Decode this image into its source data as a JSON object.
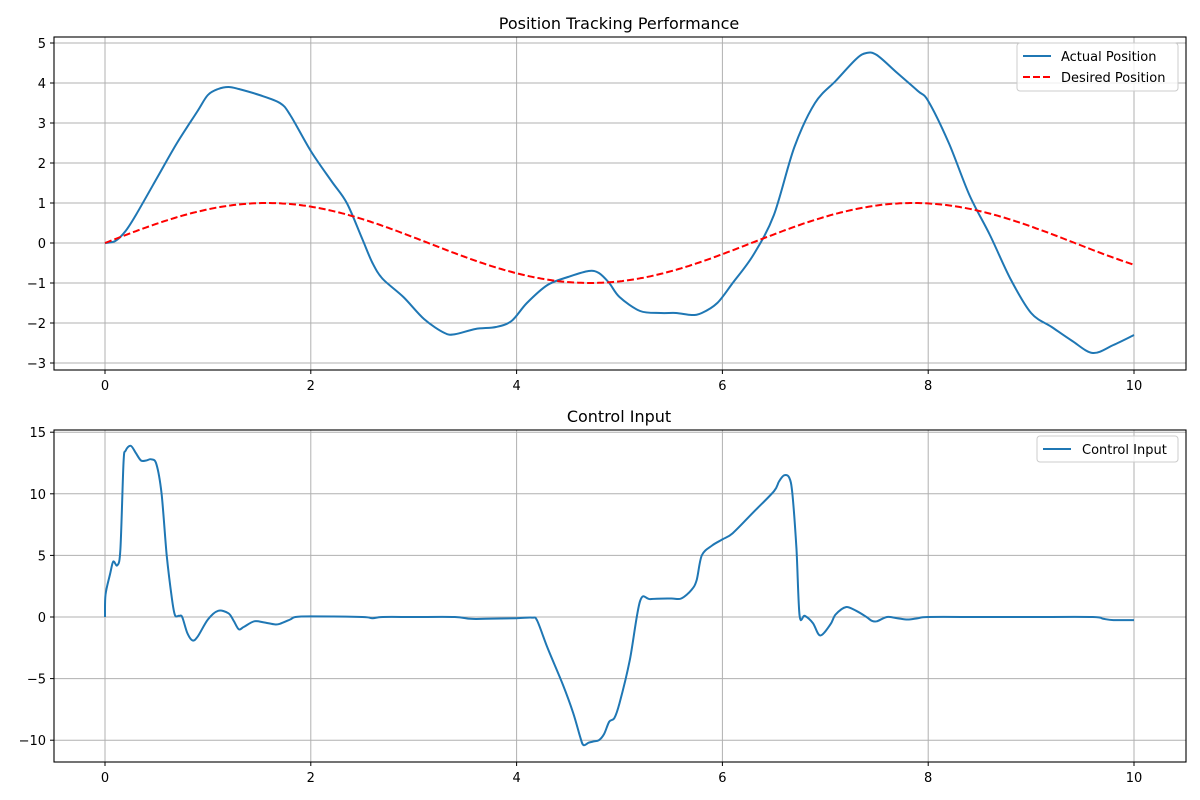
{
  "chart_data": [
    {
      "type": "line",
      "title": "Position Tracking Performance",
      "xlabel": "",
      "ylabel": "",
      "xlim": [
        -0.5,
        10.5
      ],
      "ylim": [
        -3.15,
        5.15
      ],
      "xticks": [
        0,
        2,
        4,
        6,
        8,
        10
      ],
      "yticks": [
        -3,
        -2,
        -1,
        0,
        1,
        2,
        3,
        4,
        5
      ],
      "grid": true,
      "legend_position": "upper right",
      "series": [
        {
          "name": "Actual Position",
          "color": "#1f77b4",
          "linestyle": "solid",
          "x": [
            0,
            0.1,
            0.2,
            0.3,
            0.5,
            0.7,
            0.9,
            1.0,
            1.1,
            1.2,
            1.3,
            1.5,
            1.7,
            1.8,
            2.0,
            2.2,
            2.35,
            2.5,
            2.6,
            2.7,
            2.9,
            3.1,
            3.3,
            3.4,
            3.6,
            3.8,
            3.95,
            4.1,
            4.3,
            4.5,
            4.7,
            4.8,
            4.9,
            5.0,
            5.2,
            5.4,
            5.55,
            5.7,
            5.8,
            5.95,
            6.1,
            6.3,
            6.5,
            6.7,
            6.9,
            7.1,
            7.3,
            7.4,
            7.5,
            7.7,
            7.9,
            8.0,
            8.2,
            8.4,
            8.6,
            8.8,
            9.0,
            9.2,
            9.4,
            9.6,
            9.8,
            10.0
          ],
          "values": [
            0.0,
            0.05,
            0.3,
            0.7,
            1.6,
            2.5,
            3.3,
            3.7,
            3.85,
            3.9,
            3.85,
            3.7,
            3.5,
            3.2,
            2.3,
            1.55,
            1.0,
            0.1,
            -0.5,
            -0.9,
            -1.35,
            -1.9,
            -2.25,
            -2.28,
            -2.15,
            -2.1,
            -1.95,
            -1.5,
            -1.05,
            -0.85,
            -0.7,
            -0.75,
            -1.0,
            -1.35,
            -1.7,
            -1.75,
            -1.75,
            -1.8,
            -1.75,
            -1.5,
            -1.0,
            -0.3,
            0.7,
            2.4,
            3.5,
            4.05,
            4.6,
            4.75,
            4.7,
            4.25,
            3.8,
            3.55,
            2.5,
            1.2,
            0.2,
            -0.9,
            -1.75,
            -2.1,
            -2.45,
            -2.75,
            -2.55,
            -2.3
          ]
        },
        {
          "name": "Desired Position",
          "color": "#ff0000",
          "linestyle": "dashed",
          "function": "sin(x)",
          "x": [
            0,
            0.5,
            1.0,
            1.5,
            2.0,
            2.5,
            3.0,
            3.5,
            4.0,
            4.5,
            5.0,
            5.5,
            6.0,
            6.5,
            7.0,
            7.5,
            8.0,
            8.5,
            9.0,
            9.5,
            10.0
          ],
          "values": [
            0.0,
            0.48,
            0.84,
            1.0,
            0.91,
            0.6,
            0.14,
            -0.35,
            -0.76,
            -0.98,
            -0.96,
            -0.71,
            -0.28,
            0.22,
            0.66,
            0.94,
            0.99,
            0.8,
            0.41,
            -0.08,
            -0.54
          ]
        }
      ]
    },
    {
      "type": "line",
      "title": "Control Input",
      "xlabel": "",
      "ylabel": "",
      "xlim": [
        -0.5,
        10.5
      ],
      "ylim": [
        -11.8,
        15.2
      ],
      "xticks": [
        0,
        2,
        4,
        6,
        8,
        10
      ],
      "yticks": [
        -10,
        -5,
        0,
        5,
        10,
        15
      ],
      "grid": true,
      "legend_position": "upper right",
      "series": [
        {
          "name": "Control Input",
          "color": "#1f77b4",
          "linestyle": "solid",
          "x": [
            0,
            0.005,
            0.05,
            0.08,
            0.12,
            0.15,
            0.18,
            0.2,
            0.25,
            0.3,
            0.35,
            0.4,
            0.45,
            0.5,
            0.55,
            0.6,
            0.65,
            0.68,
            0.72,
            0.75,
            0.8,
            0.85,
            0.9,
            1.0,
            1.1,
            1.2,
            1.25,
            1.3,
            1.35,
            1.45,
            1.55,
            1.65,
            1.7,
            1.8,
            1.85,
            2.0,
            2.5,
            2.6,
            2.7,
            3.0,
            3.4,
            3.55,
            3.7,
            4.0,
            4.15,
            4.2,
            4.3,
            4.45,
            4.55,
            4.62,
            4.65,
            4.7,
            4.75,
            4.8,
            4.85,
            4.9,
            4.95,
            5.0,
            5.1,
            5.2,
            5.3,
            5.5,
            5.6,
            5.7,
            5.75,
            5.8,
            5.9,
            6.0,
            6.1,
            6.3,
            6.5,
            6.55,
            6.6,
            6.65,
            6.68,
            6.72,
            6.75,
            6.8,
            6.88,
            6.95,
            7.05,
            7.1,
            7.2,
            7.3,
            7.4,
            7.45,
            7.5,
            7.6,
            7.7,
            7.8,
            7.9,
            8.0,
            8.5,
            9.0,
            9.6,
            9.7,
            9.8,
            10.0
          ],
          "values": [
            0.0,
            1.8,
            3.5,
            4.5,
            4.2,
            5.5,
            12.5,
            13.5,
            13.9,
            13.3,
            12.7,
            12.7,
            12.8,
            12.4,
            10.0,
            5.0,
            1.5,
            0.15,
            0.1,
            0.0,
            -1.3,
            -1.9,
            -1.6,
            -0.2,
            0.5,
            0.3,
            -0.3,
            -1.0,
            -0.8,
            -0.35,
            -0.45,
            -0.6,
            -0.55,
            -0.2,
            0.0,
            0.05,
            0.0,
            -0.1,
            0.0,
            0.0,
            0.0,
            -0.15,
            -0.15,
            -0.1,
            -0.05,
            -0.3,
            -2.5,
            -5.5,
            -7.8,
            -9.8,
            -10.4,
            -10.2,
            -10.1,
            -10.0,
            -9.5,
            -8.5,
            -8.2,
            -7.0,
            -3.5,
            1.3,
            1.45,
            1.5,
            1.5,
            2.2,
            3.0,
            5.0,
            5.8,
            6.3,
            6.8,
            8.5,
            10.2,
            11.0,
            11.5,
            11.3,
            10.0,
            5.5,
            0.1,
            0.1,
            -0.5,
            -1.5,
            -0.6,
            0.2,
            0.8,
            0.5,
            0.0,
            -0.3,
            -0.35,
            0.0,
            -0.1,
            -0.2,
            -0.1,
            0.0,
            0.0,
            0.0,
            0.0,
            -0.15,
            -0.25,
            -0.25
          ]
        }
      ]
    }
  ],
  "panels": {
    "top": {
      "title": "Position Tracking Performance",
      "legend": [
        "Actual Position",
        "Desired Position"
      ],
      "xtick_labels": [
        "0",
        "2",
        "4",
        "6",
        "8",
        "10"
      ],
      "ytick_labels": [
        "−3",
        "−2",
        "−1",
        "0",
        "1",
        "2",
        "3",
        "4",
        "5"
      ]
    },
    "bottom": {
      "title": "Control Input",
      "legend": [
        "Control Input"
      ],
      "xtick_labels": [
        "0",
        "2",
        "4",
        "6",
        "8",
        "10"
      ],
      "ytick_labels": [
        "−10",
        "−5",
        "0",
        "5",
        "10",
        "15"
      ]
    }
  }
}
